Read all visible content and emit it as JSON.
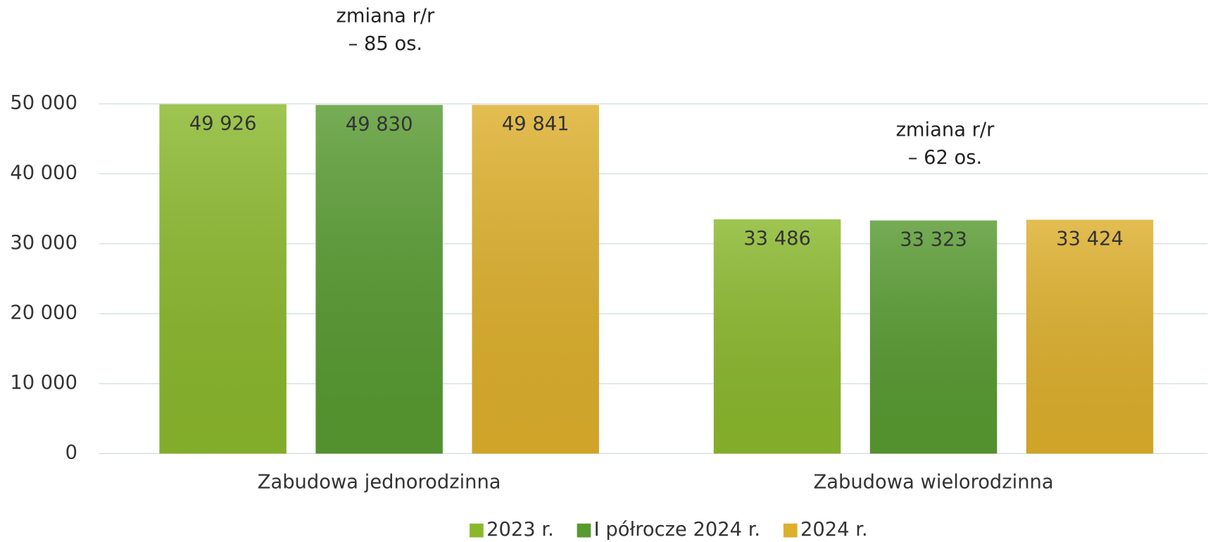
{
  "chart_data": {
    "type": "bar",
    "categories": [
      "Zabudowa jednorodzinna",
      "Zabudowa wielorodzinna"
    ],
    "series": [
      {
        "name": "2023 r.",
        "color": "#8ab82c",
        "values": [
          49926,
          33486
        ],
        "value_labels": [
          "49 926",
          "33 486"
        ]
      },
      {
        "name": "I półrocze 2024 r.",
        "color": "#579a30",
        "values": [
          49830,
          33323
        ],
        "value_labels": [
          "49 830",
          "33 323"
        ]
      },
      {
        "name": "2024 r.",
        "color": "#ddaf2b",
        "values": [
          49841,
          33424
        ],
        "value_labels": [
          "49 841",
          "33 424"
        ]
      }
    ],
    "annotations": [
      {
        "lines": [
          "zmiana r/r",
          "– 85 os."
        ]
      },
      {
        "lines": [
          "zmiana r/r",
          "– 62 os."
        ]
      }
    ],
    "ylim": [
      0,
      50000
    ],
    "yticks": [
      0,
      {
        "value": 10000,
        "label": "10 000"
      },
      {
        "value": 20000,
        "label": "20 000"
      },
      {
        "value": 30000,
        "label": "30 000"
      },
      {
        "value": 40000,
        "label": "40 000"
      },
      {
        "value": 50000,
        "label": "50 000"
      }
    ],
    "grid": true,
    "legend": "bottom"
  }
}
